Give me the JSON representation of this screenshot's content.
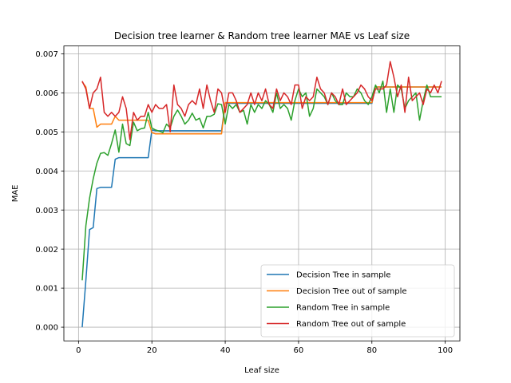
{
  "chart_data": {
    "type": "line",
    "title": "Decision tree learner & Random tree learner MAE vs Leaf size",
    "xlabel": "Leaf size",
    "ylabel": "MAE",
    "xlim": [
      -4,
      104
    ],
    "ylim": [
      -0.00035,
      0.0072
    ],
    "xticks": [
      0,
      20,
      40,
      60,
      80,
      100
    ],
    "xtick_labels": [
      "0",
      "20",
      "40",
      "60",
      "80",
      "100"
    ],
    "yticks": [
      0,
      0.001,
      0.002,
      0.003,
      0.004,
      0.005,
      0.006,
      0.007
    ],
    "ytick_labels": [
      "0.000",
      "0.001",
      "0.002",
      "0.003",
      "0.004",
      "0.005",
      "0.006",
      "0.007"
    ],
    "grid": true,
    "legend": "lower right",
    "x_start": 1,
    "series": [
      {
        "name": "Decision Tree in sample",
        "color": "#1f77b4",
        "values": [
          0.0,
          0.0012,
          0.0025,
          0.00255,
          0.00355,
          0.00358,
          0.00358,
          0.00358,
          0.00358,
          0.0043,
          0.00434,
          0.00434,
          0.00434,
          0.00434,
          0.00434,
          0.00434,
          0.00434,
          0.00434,
          0.00434,
          0.00505,
          0.00503,
          0.00503,
          0.00503,
          0.00503,
          0.00503,
          0.00503,
          0.00503,
          0.00503,
          0.00503,
          0.00503,
          0.00503,
          0.00503,
          0.00503,
          0.00503,
          0.00503,
          0.00503,
          0.00503,
          0.00503,
          0.00503,
          0.00573,
          0.00573,
          0.00573,
          0.00573,
          0.00573,
          0.00573,
          0.00573,
          0.00573,
          0.00573,
          0.00573,
          0.00573,
          0.00573,
          0.00573,
          0.00573,
          0.00573,
          0.00573,
          0.00573,
          0.00573,
          0.00573,
          0.00573,
          0.00573,
          0.00573,
          0.00573,
          0.00573,
          0.00573,
          0.00573,
          0.00573,
          0.00573,
          0.00573,
          0.00573,
          0.00573,
          0.00573,
          0.00573,
          0.00573,
          0.00573,
          0.00573,
          0.00573,
          0.00573,
          0.00573,
          0.00573,
          0.00573,
          0.00615,
          0.00615,
          0.00615,
          0.00615,
          0.00615,
          0.00615,
          0.00615,
          0.00615,
          0.00615,
          0.00615,
          0.00615,
          0.00615,
          0.00615,
          0.00615,
          0.00615,
          0.00615,
          0.00615,
          0.00615,
          0.00615
        ]
      },
      {
        "name": "Decision Tree out of sample",
        "color": "#ff7f0e",
        "values": [
          0.00628,
          0.00615,
          0.0056,
          0.0056,
          0.00512,
          0.0052,
          0.0052,
          0.0052,
          0.0052,
          0.0054,
          0.0053,
          0.0053,
          0.0053,
          0.0053,
          0.0053,
          0.0053,
          0.0053,
          0.0053,
          0.0053,
          0.00498,
          0.00495,
          0.00495,
          0.00495,
          0.00495,
          0.00495,
          0.00495,
          0.00495,
          0.00495,
          0.00495,
          0.00495,
          0.00495,
          0.00495,
          0.00495,
          0.00495,
          0.00495,
          0.00495,
          0.00495,
          0.00495,
          0.00495,
          0.00575,
          0.00575,
          0.00575,
          0.00575,
          0.00575,
          0.00575,
          0.00575,
          0.00575,
          0.00575,
          0.00575,
          0.00575,
          0.00575,
          0.00575,
          0.00575,
          0.00575,
          0.00575,
          0.00575,
          0.00575,
          0.00575,
          0.00575,
          0.00575,
          0.00575,
          0.00575,
          0.00575,
          0.00575,
          0.00575,
          0.00575,
          0.00575,
          0.00575,
          0.00575,
          0.00575,
          0.00575,
          0.00575,
          0.00575,
          0.00575,
          0.00575,
          0.00575,
          0.00575,
          0.00575,
          0.00575,
          0.00575,
          0.00615,
          0.00615,
          0.00615,
          0.00615,
          0.00615,
          0.00615,
          0.00615,
          0.00615,
          0.00615,
          0.00615,
          0.00615,
          0.00615,
          0.00615,
          0.00615,
          0.00615,
          0.00615,
          0.00615,
          0.00615,
          0.00615
        ]
      },
      {
        "name": "Random Tree in sample",
        "color": "#2ca02c",
        "values": [
          0.0012,
          0.0026,
          0.0033,
          0.0038,
          0.0042,
          0.00445,
          0.00447,
          0.0044,
          0.0047,
          0.00505,
          0.00448,
          0.0052,
          0.0047,
          0.00465,
          0.00525,
          0.00503,
          0.00508,
          0.0051,
          0.0055,
          0.0051,
          0.00505,
          0.00502,
          0.00498,
          0.0052,
          0.0051,
          0.0054,
          0.00556,
          0.0054,
          0.0052,
          0.0053,
          0.00548,
          0.0053,
          0.00535,
          0.0051,
          0.0054,
          0.0054,
          0.00545,
          0.00572,
          0.0057,
          0.0052,
          0.0057,
          0.0056,
          0.0057,
          0.0055,
          0.00555,
          0.0052,
          0.0057,
          0.0055,
          0.0057,
          0.0056,
          0.0058,
          0.0057,
          0.0055,
          0.006,
          0.0056,
          0.0057,
          0.0056,
          0.0053,
          0.0058,
          0.0061,
          0.0059,
          0.006,
          0.0054,
          0.0056,
          0.0061,
          0.006,
          0.0059,
          0.0057,
          0.006,
          0.0058,
          0.0057,
          0.0057,
          0.006,
          0.0059,
          0.0059,
          0.0061,
          0.006,
          0.0058,
          0.0057,
          0.0059,
          0.0062,
          0.006,
          0.0063,
          0.0055,
          0.0061,
          0.0055,
          0.0062,
          0.0061,
          0.0056,
          0.0058,
          0.0059,
          0.006,
          0.0053,
          0.0058,
          0.0062,
          0.0059,
          0.0059,
          0.0059,
          0.0059
        ]
      },
      {
        "name": "Random Tree out of sample",
        "color": "#d62728",
        "values": [
          0.0063,
          0.0061,
          0.0056,
          0.006,
          0.0061,
          0.0064,
          0.0055,
          0.0054,
          0.0055,
          0.0054,
          0.0055,
          0.0059,
          0.0056,
          0.0048,
          0.0055,
          0.0053,
          0.0054,
          0.0054,
          0.0057,
          0.0055,
          0.0057,
          0.0056,
          0.0056,
          0.0057,
          0.005,
          0.0062,
          0.0057,
          0.0056,
          0.0054,
          0.0057,
          0.0058,
          0.0057,
          0.0061,
          0.0056,
          0.0062,
          0.0058,
          0.0055,
          0.0061,
          0.006,
          0.0055,
          0.006,
          0.006,
          0.0058,
          0.0055,
          0.0056,
          0.0057,
          0.006,
          0.0057,
          0.006,
          0.0058,
          0.0061,
          0.0057,
          0.0056,
          0.0061,
          0.0058,
          0.006,
          0.0059,
          0.0057,
          0.0062,
          0.0062,
          0.0056,
          0.0059,
          0.0058,
          0.0059,
          0.0064,
          0.0061,
          0.006,
          0.0057,
          0.006,
          0.0059,
          0.0057,
          0.0061,
          0.0057,
          0.0058,
          0.0059,
          0.006,
          0.0062,
          0.0061,
          0.0059,
          0.0058,
          0.0061,
          0.0061,
          0.0061,
          0.0062,
          0.0068,
          0.0064,
          0.0059,
          0.0062,
          0.0055,
          0.0064,
          0.0058,
          0.0059,
          0.006,
          0.0057,
          0.0061,
          0.006,
          0.0062,
          0.006,
          0.0063
        ]
      }
    ]
  }
}
